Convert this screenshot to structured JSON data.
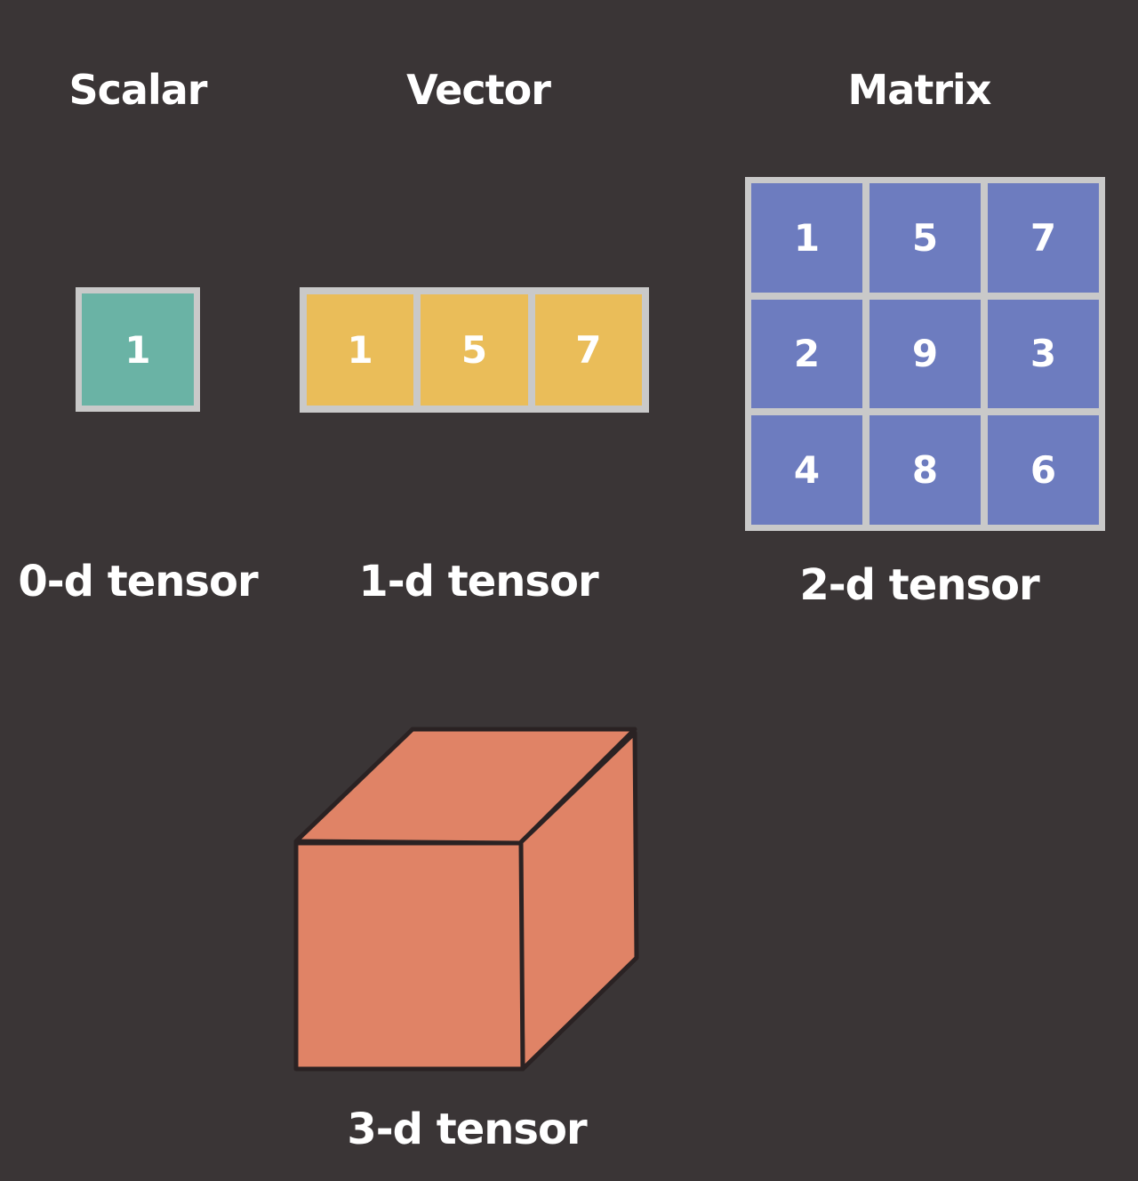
{
  "scalar": {
    "title": "Scalar",
    "caption": "0-d tensor",
    "value": "1",
    "color": "#6ab3a5"
  },
  "vector": {
    "title": "Vector",
    "caption": "1-d tensor",
    "values": [
      "1",
      "5",
      "7"
    ],
    "color": "#eabd59"
  },
  "matrix": {
    "title": "Matrix",
    "caption": "2-d tensor",
    "rows": [
      [
        "1",
        "5",
        "7"
      ],
      [
        "2",
        "9",
        "3"
      ],
      [
        "4",
        "8",
        "6"
      ]
    ],
    "color": "#6d7cbf"
  },
  "tensor3d": {
    "caption": "3-d tensor",
    "color": "#e08366",
    "edge_color": "#2a2223"
  },
  "colors": {
    "background": "#3a3536",
    "frame": "#c9c9c9",
    "text": "#ffffff"
  }
}
